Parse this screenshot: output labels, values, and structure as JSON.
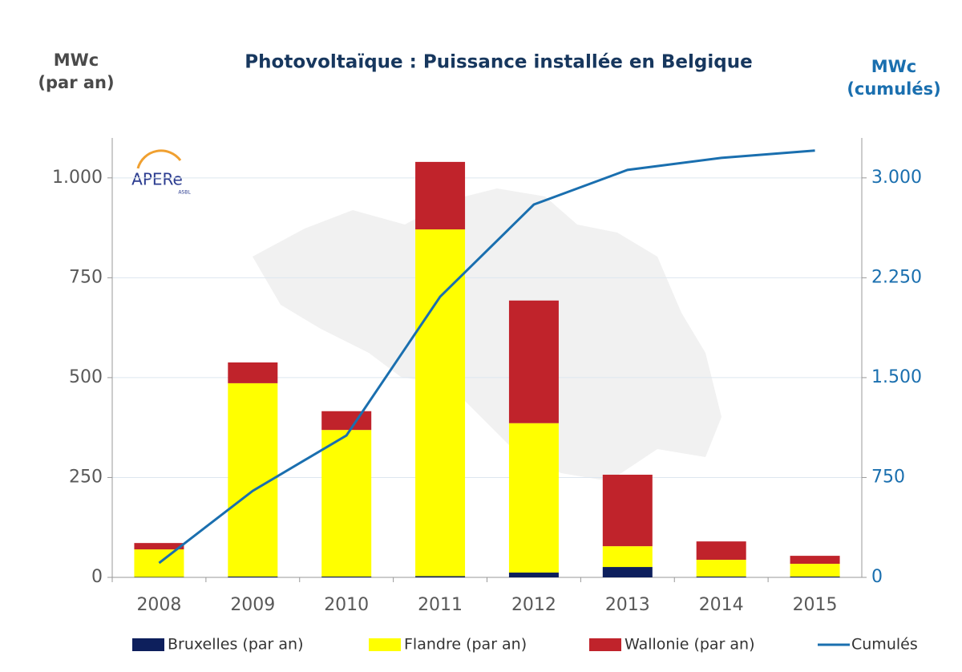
{
  "chart_data": {
    "type": "bar",
    "stacked": true,
    "title": "Photovoltaïque : Puissance installée en Belgique",
    "y_label": [
      "MWc",
      "(par an)"
    ],
    "y2_label": [
      "MWc",
      "(cumulés)"
    ],
    "logo": "APERe",
    "logo_sub": "ASBL",
    "categories": [
      "2008",
      "2009",
      "2010",
      "2011",
      "2012",
      "2013",
      "2014",
      "2015"
    ],
    "series": [
      {
        "name": "Bruxelles (par an)",
        "color": "#0d1f5c",
        "values": [
          1,
          2,
          2,
          3,
          12,
          26,
          2,
          2
        ]
      },
      {
        "name": "Flandre (par an)",
        "color": "#ffff00",
        "values": [
          69,
          484,
          367,
          868,
          374,
          52,
          42,
          32
        ]
      },
      {
        "name": "Wallonie (par an)",
        "color": "#c0232b",
        "values": [
          16,
          52,
          47,
          169,
          307,
          179,
          46,
          20
        ]
      },
      {
        "name": "Cumulés",
        "color": "#1a6faf",
        "type": "line",
        "axis": "y2",
        "values": [
          108,
          650,
          1066,
          2108,
          2800,
          3060,
          3150,
          3205
        ]
      }
    ],
    "ylim": [
      0,
      1100
    ],
    "yticks": [
      0,
      250,
      500,
      750,
      {
        "value": 1000,
        "label": "1.000"
      }
    ],
    "y2lim": [
      0,
      3300
    ],
    "y2ticks": [
      0,
      750,
      {
        "value": 1500,
        "label": "1.500"
      },
      {
        "value": 2250,
        "label": "2.250"
      },
      {
        "value": 3000,
        "label": "3.000"
      }
    ],
    "grid": true
  }
}
